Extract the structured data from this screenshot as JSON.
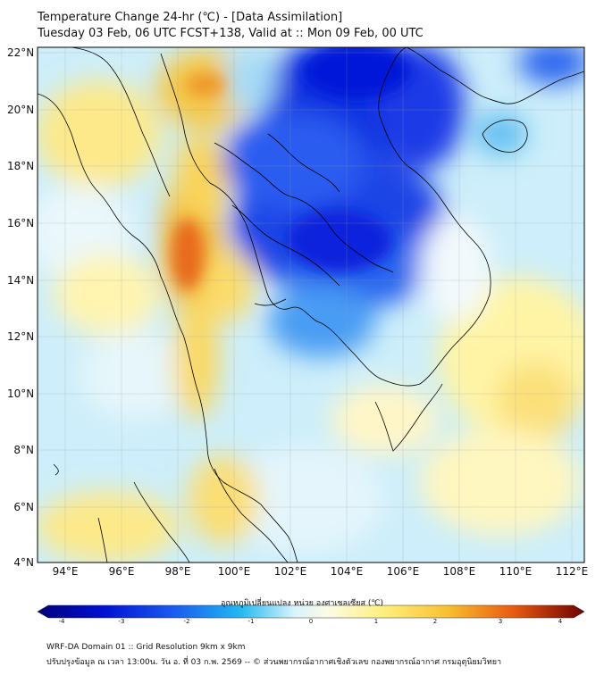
{
  "header": {
    "title_line1": "Temperature Change 24-hr (℃) - [Data Assimilation]",
    "title_line2": "Tuesday 03 Feb, 06 UTC FCST+138, Valid at :: Mon 09 Feb, 00 UTC"
  },
  "map": {
    "lat_labels": [
      "22°N",
      "20°N",
      "18°N",
      "16°N",
      "14°N",
      "12°N",
      "10°N",
      "8°N",
      "6°N",
      "4°N"
    ],
    "lon_labels": [
      "94°E",
      "96°E",
      "98°E",
      "100°E",
      "102°E",
      "104°E",
      "106°E",
      "108°E",
      "110°E",
      "112°E"
    ],
    "colors": {
      "cold": "#0018d8",
      "cool": "#1ea8f0",
      "light": "#bfeaf8",
      "neutral": "#eef8fb",
      "warm": "#fff29a",
      "warmer": "#f7c63a",
      "hot": "#e86a1a"
    }
  },
  "colorbar": {
    "title": "อุณหภูมิเปลี่ยนแปลง หน่วย องศาเซลเซียส (℃)",
    "ticks": [
      "-4",
      "-3",
      "-2",
      "-1",
      "0",
      "1",
      "2",
      "3",
      "4"
    ]
  },
  "footer": {
    "line1": "WRF-DA Domain 01 :: Grid Resolution 9km x 9km",
    "line2": "ปรับปรุงข้อมูล ณ เวลา 13:00น. วัน อ. ที่ 03 ก.พ. 2569 -- © ส่วนพยากรณ์อากาศเชิงตัวเลข กองพยากรณ์อากาศ กรมอุตุนิยมวิทยา"
  }
}
